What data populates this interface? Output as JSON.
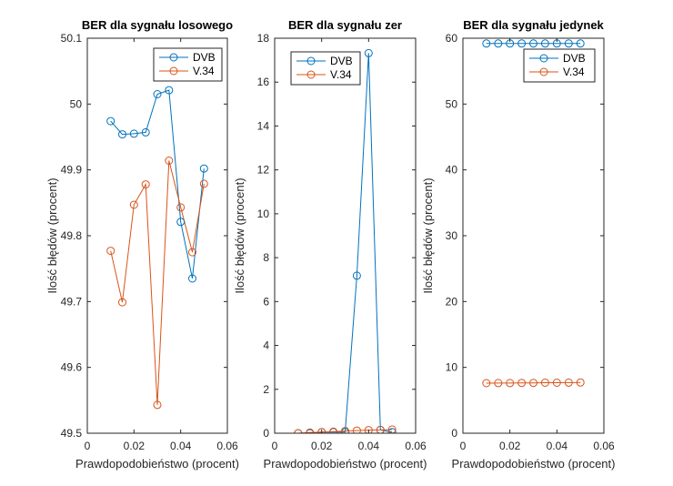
{
  "chart_data": [
    {
      "type": "line",
      "title": "BER dla sygnału losowego",
      "xlabel": "Prawdopodobieństwo (procent)",
      "ylabel": "Ilość błędów (procent)",
      "xlim": [
        0,
        0.06
      ],
      "ylim": [
        49.5,
        50.1
      ],
      "xticks": [
        "0",
        "0.02",
        "0.04",
        "0.06"
      ],
      "yticks": [
        "49.5",
        "49.6",
        "49.7",
        "49.8",
        "49.9",
        "50",
        "50.1"
      ],
      "legend_position": "top-right",
      "x": [
        0.01,
        0.015,
        0.02,
        0.025,
        0.03,
        0.035,
        0.04,
        0.045,
        0.05
      ],
      "series": [
        {
          "name": "DVB",
          "color": "#0072BD",
          "values": [
            49.974,
            49.954,
            49.955,
            49.957,
            50.015,
            50.021,
            49.821,
            49.735,
            49.902
          ]
        },
        {
          "name": "V.34",
          "color": "#D95319",
          "values": [
            49.777,
            49.699,
            49.847,
            49.878,
            49.543,
            49.914,
            49.843,
            49.775,
            49.879
          ]
        }
      ]
    },
    {
      "type": "line",
      "title": "BER dla sygnału zer",
      "xlabel": "Prawdopodobieństwo (procent)",
      "ylabel": "Ilość błędów (procent)",
      "xlim": [
        0,
        0.06
      ],
      "ylim": [
        0,
        18
      ],
      "xticks": [
        "0",
        "0.02",
        "0.04",
        "0.06"
      ],
      "yticks": [
        "0",
        "2",
        "4",
        "6",
        "8",
        "10",
        "12",
        "14",
        "16",
        "18"
      ],
      "legend_position": "top-left",
      "x": [
        0.01,
        0.015,
        0.02,
        0.025,
        0.03,
        0.035,
        0.04,
        0.045,
        0.05
      ],
      "series": [
        {
          "name": "DVB",
          "color": "#0072BD",
          "values": [
            0.0,
            0.0,
            0.05,
            0.05,
            0.05,
            7.18,
            17.32,
            0.15,
            0.05
          ]
        },
        {
          "name": "V.34",
          "color": "#D95319",
          "values": [
            0.0,
            0.03,
            0.05,
            0.07,
            0.1,
            0.12,
            0.14,
            0.15,
            0.17
          ]
        }
      ]
    },
    {
      "type": "line",
      "title": "BER dla sygnału jedynek",
      "xlabel": "Prawdopodobieństwo (procent)",
      "ylabel": "Ilość błędów (procent)",
      "xlim": [
        0,
        0.06
      ],
      "ylim": [
        0,
        60
      ],
      "xticks": [
        "0",
        "0.02",
        "0.04",
        "0.06"
      ],
      "yticks": [
        "0",
        "10",
        "20",
        "30",
        "40",
        "50",
        "60"
      ],
      "legend_position": "top-right",
      "x": [
        0.01,
        0.015,
        0.02,
        0.025,
        0.03,
        0.035,
        0.04,
        0.045,
        0.05
      ],
      "series": [
        {
          "name": "DVB",
          "color": "#0072BD",
          "values": [
            59.2,
            59.2,
            59.2,
            59.2,
            59.2,
            59.2,
            59.2,
            59.2,
            59.2
          ]
        },
        {
          "name": "V.34",
          "color": "#D95319",
          "values": [
            7.6,
            7.62,
            7.62,
            7.63,
            7.65,
            7.67,
            7.67,
            7.68,
            7.7
          ]
        }
      ]
    }
  ]
}
